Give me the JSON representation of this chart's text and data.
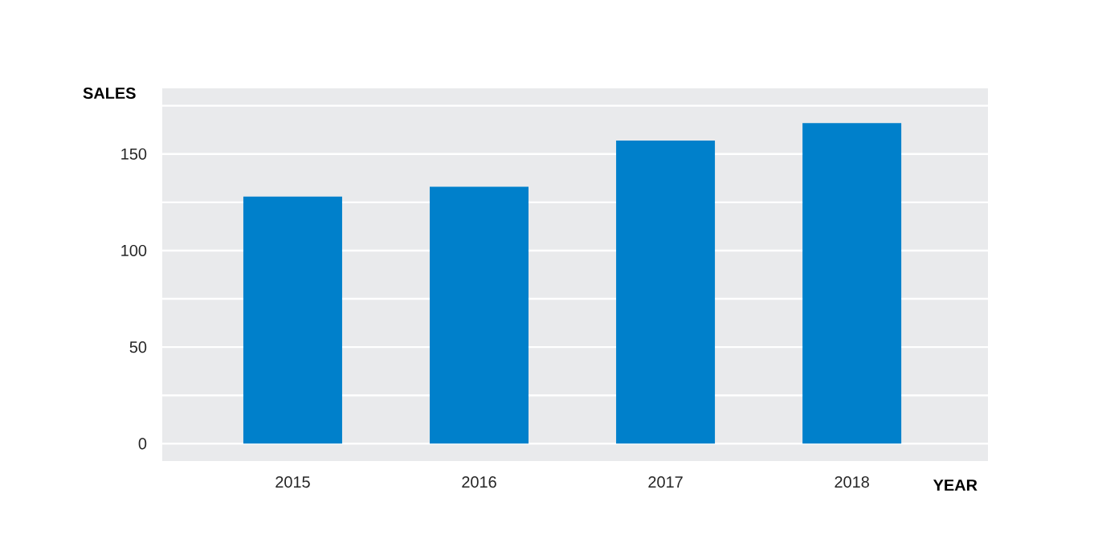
{
  "chart_data": {
    "type": "bar",
    "xlabel": "YEAR",
    "ylabel": "SALES",
    "categories": [
      "2015",
      "2016",
      "2017",
      "2018"
    ],
    "values": [
      128,
      133,
      157,
      166
    ],
    "color": "#0080cb",
    "ylim": [
      -9,
      184
    ],
    "yticks": [
      0,
      {
        "value": 25,
        "label": null
      },
      50,
      {
        "value": 75,
        "label": null
      },
      100,
      {
        "value": 125,
        "label": null
      },
      150,
      {
        "value": 175,
        "label": null
      }
    ],
    "grid": "y"
  }
}
